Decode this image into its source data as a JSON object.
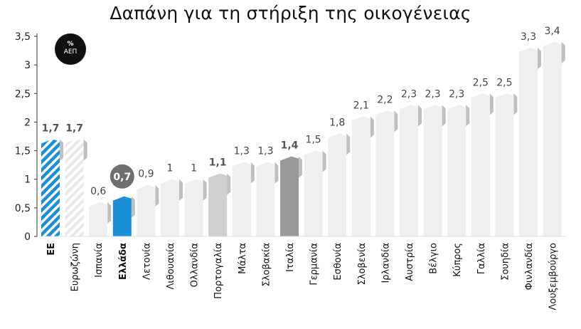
{
  "title": "Δαπάνη για τη στήριξη της οικογένειας",
  "badge": {
    "line1": "%",
    "line2": "ΑΕΠ"
  },
  "highlight_label": "0,7",
  "chart_data": {
    "type": "bar",
    "title": "Δαπάνη για τη στήριξη της οικογένειας",
    "unit": "% ΑΕΠ",
    "ylim": [
      0,
      3.5
    ],
    "yticks": [
      "0",
      "0,5",
      "1",
      "1,5",
      "2",
      "2,5",
      "3",
      "3,5"
    ],
    "grid": false,
    "categories": [
      "ΕΕ",
      "Ευρωζώνη",
      "Ισπανία",
      "Ελλάδα",
      "Λετονία",
      "Λιθουανία",
      "Ολλανδία",
      "Πορτογαλία",
      "Μάλτα",
      "Σλοβακία",
      "Ιταλία",
      "Γερμανία",
      "Εσθονία",
      "Σλοβενία",
      "Ιρλανδία",
      "Αυστρία",
      "Βέλγιο",
      "Κύπρος",
      "Γαλλία",
      "Σουηδία",
      "Φινλανδία",
      "Λουξεμβούργο"
    ],
    "values": [
      1.7,
      1.7,
      0.6,
      0.7,
      0.9,
      1,
      1,
      1.1,
      1.3,
      1.3,
      1.4,
      1.5,
      1.8,
      2.1,
      2.2,
      2.3,
      2.3,
      2.3,
      2.5,
      2.5,
      3.3,
      3.4
    ],
    "value_labels": [
      "1,7",
      "1,7",
      "0,6",
      "",
      "0,9",
      "1",
      "1",
      "1,1",
      "1,3",
      "1,3",
      "1,4",
      "1,5",
      "1,8",
      "2,1",
      "2,2",
      "2,3",
      "2,3",
      "2,3",
      "2,5",
      "2,5",
      "3,3",
      "3,4"
    ],
    "bar_styles": [
      "hatch-blue",
      "hatch-light",
      "light",
      "blue",
      "light",
      "light",
      "light",
      "mid",
      "light",
      "light",
      "dark",
      "light",
      "light",
      "light",
      "light",
      "light",
      "light",
      "light",
      "light",
      "light",
      "light",
      "light"
    ],
    "bold_labels": [
      "ΕΕ",
      "Ελλάδα"
    ],
    "colors": {
      "light": "#efefef",
      "mid": "#cfcfcf",
      "dark": "#9a9a9a",
      "blue": "#1a8fd6",
      "axis": "#333333",
      "badge": "#111111",
      "highlight_circle": "#6f6f6f"
    }
  }
}
